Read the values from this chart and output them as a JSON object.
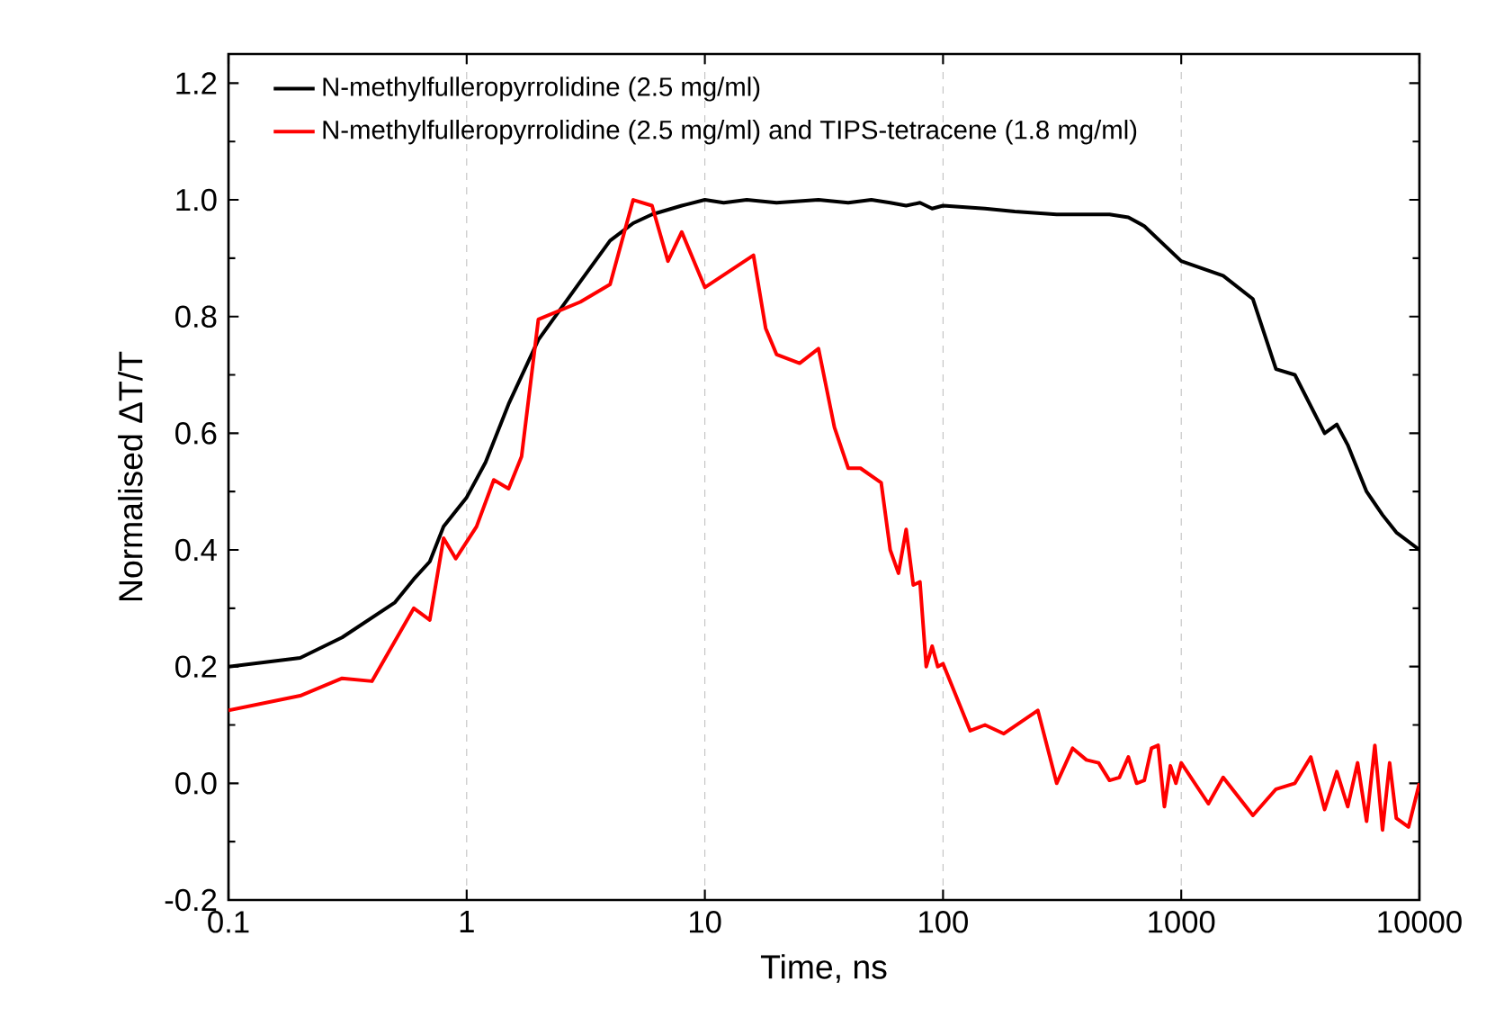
{
  "chart_data": {
    "type": "line",
    "xlabel": "Time, ns",
    "ylabel": "Normalised ΔT/T",
    "log": "x",
    "grid": "x",
    "legend": "top left",
    "marker": "none",
    "line_style": "solid",
    "xlim": [
      0.1,
      10000
    ],
    "xticks": [
      0.1,
      1,
      10,
      100,
      1000,
      10000
    ],
    "ylim": [
      -0.2,
      1.25
    ],
    "yticks": [
      {
        "value": -0.2,
        "label": "-0.2"
      },
      {
        "value": 0,
        "label": "0.0"
      },
      {
        "value": 0.2,
        "label": "0.2"
      },
      {
        "value": 0.4,
        "label": "0.4"
      },
      {
        "value": 0.6,
        "label": "0.6"
      },
      {
        "value": 0.8,
        "label": "0.8"
      },
      {
        "value": 1,
        "label": "1.0"
      },
      {
        "value": 1.2,
        "label": "1.2"
      }
    ],
    "series": [
      {
        "name": "N-methylfulleropyrrolidine (2.5 mg/ml)",
        "color": "#000000",
        "x": [
          0.1,
          0.2,
          0.3,
          0.5,
          0.6,
          0.7,
          0.8,
          1,
          1.2,
          1.5,
          2,
          3,
          4,
          5,
          6,
          8,
          10,
          12,
          15,
          20,
          30,
          40,
          50,
          60,
          70,
          80,
          90,
          100,
          150,
          200,
          300,
          500,
          600,
          700,
          1000,
          1500,
          2000,
          2500,
          3000,
          4000,
          4500,
          5000,
          6000,
          7000,
          8000,
          10000
        ],
        "values": [
          0.2,
          0.215,
          0.25,
          0.31,
          0.35,
          0.38,
          0.44,
          0.49,
          0.55,
          0.65,
          0.76,
          0.86,
          0.93,
          0.96,
          0.975,
          0.99,
          1.0,
          0.995,
          1.0,
          0.995,
          1.0,
          0.995,
          1.0,
          0.995,
          0.99,
          0.995,
          0.985,
          0.99,
          0.985,
          0.98,
          0.975,
          0.975,
          0.97,
          0.955,
          0.895,
          0.87,
          0.83,
          0.71,
          0.7,
          0.6,
          0.615,
          0.58,
          0.5,
          0.46,
          0.43,
          0.4
        ]
      },
      {
        "name": "N-methylfulleropyrrolidine (2.5 mg/ml) and TIPS-tetracene (1.8 mg/ml)",
        "color": "#ff0000",
        "x": [
          0.1,
          0.2,
          0.3,
          0.4,
          0.6,
          0.7,
          0.8,
          0.9,
          1.1,
          1.3,
          1.5,
          1.7,
          2,
          3,
          4,
          5,
          6,
          7,
          8,
          10,
          16,
          18,
          20,
          25,
          30,
          35,
          40,
          45,
          55,
          60,
          65,
          70,
          75,
          80,
          85,
          90,
          95,
          100,
          130,
          150,
          180,
          250,
          300,
          350,
          400,
          450,
          500,
          550,
          600,
          650,
          700,
          750,
          800,
          850,
          900,
          950,
          1000,
          1300,
          1500,
          2000,
          2500,
          3000,
          3500,
          4000,
          4500,
          5000,
          5500,
          6000,
          6500,
          7000,
          7500,
          8000,
          9000,
          10000
        ],
        "values": [
          0.125,
          0.15,
          0.18,
          0.175,
          0.3,
          0.28,
          0.42,
          0.385,
          0.44,
          0.52,
          0.505,
          0.56,
          0.795,
          0.825,
          0.855,
          1.0,
          0.99,
          0.895,
          0.945,
          0.85,
          0.905,
          0.78,
          0.735,
          0.72,
          0.745,
          0.61,
          0.54,
          0.54,
          0.515,
          0.4,
          0.36,
          0.435,
          0.34,
          0.345,
          0.2,
          0.235,
          0.2,
          0.205,
          0.09,
          0.1,
          0.085,
          0.125,
          0.0,
          0.06,
          0.04,
          0.035,
          0.005,
          0.01,
          0.045,
          0.0,
          0.005,
          0.06,
          0.065,
          -0.04,
          0.03,
          0.0,
          0.035,
          -0.035,
          0.01,
          -0.055,
          -0.01,
          0.0,
          0.045,
          -0.045,
          0.02,
          -0.04,
          0.035,
          -0.065,
          0.065,
          -0.08,
          0.035,
          -0.06,
          -0.075,
          0.0
        ]
      }
    ]
  }
}
